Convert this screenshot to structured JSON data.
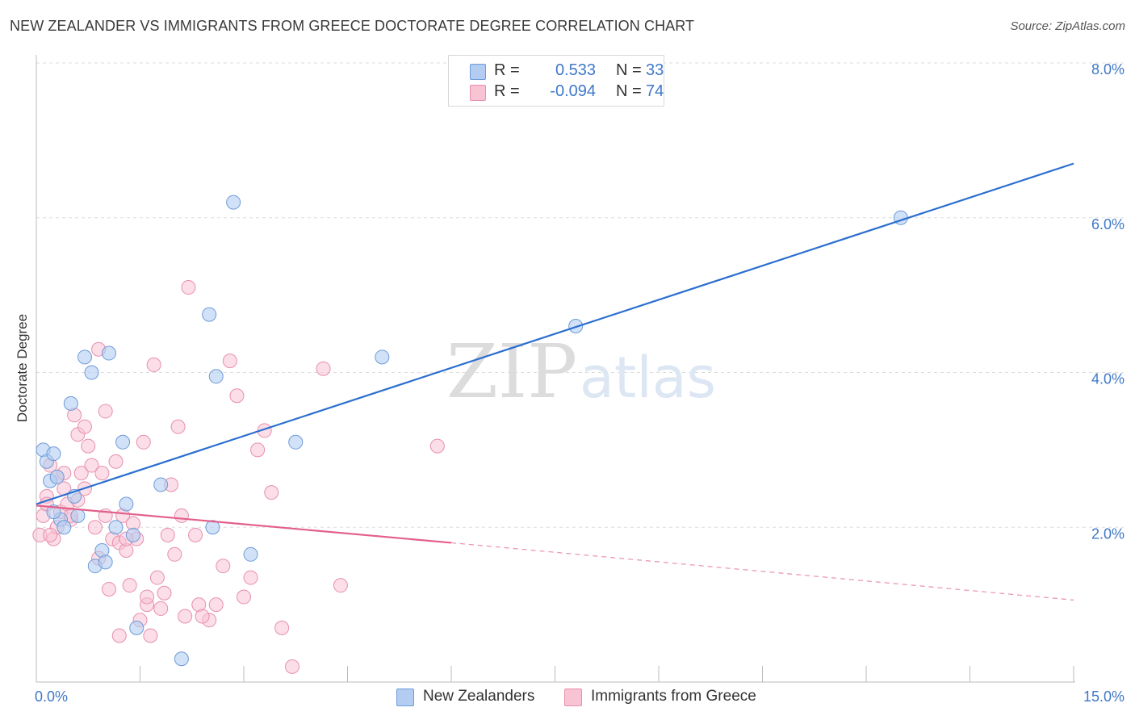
{
  "title": "NEW ZEALANDER VS IMMIGRANTS FROM GREECE DOCTORATE DEGREE CORRELATION CHART",
  "source": "Source: ZipAtlas.com",
  "watermark": {
    "zip": "ZIP",
    "atlas": "atlas"
  },
  "legend": {
    "series1": {
      "r_label": "R =",
      "r_value": "0.533",
      "n_label": "N =",
      "n_value": "33"
    },
    "series2": {
      "r_label": "R =",
      "r_value": "-0.094",
      "n_label": "N =",
      "n_value": "74"
    }
  },
  "colors": {
    "blue_fill": "#b3cdf2",
    "blue_stroke": "#6e9bd8",
    "blue_line": "#2b6fd0",
    "pink_fill": "#f8c3d3",
    "pink_stroke": "#e890ad",
    "pink_line": "#e2608a",
    "tick_label": "#3f78c8",
    "grid": "#dddddd",
    "axis": "#bbbbbb"
  },
  "chart_data": {
    "type": "scatter",
    "title": "NEW ZEALANDER VS IMMIGRANTS FROM GREECE DOCTORATE DEGREE CORRELATION CHART",
    "ylabel": "Doctorate Degree",
    "xlabel": "",
    "xlim": [
      0,
      15
    ],
    "ylim": [
      0,
      8
    ],
    "x_tick_labels": [
      "0.0%",
      "15.0%"
    ],
    "y_ticks": [
      2,
      4,
      6,
      8
    ],
    "y_tick_labels": [
      "2.0%",
      "4.0%",
      "6.0%",
      "8.0%"
    ],
    "grid": true,
    "series": [
      {
        "name": "New Zealanders",
        "color": "blue",
        "points": [
          [
            0.1,
            3.0
          ],
          [
            0.15,
            2.85
          ],
          [
            0.2,
            2.6
          ],
          [
            0.25,
            2.95
          ],
          [
            0.3,
            2.65
          ],
          [
            0.35,
            2.1
          ],
          [
            0.4,
            2.0
          ],
          [
            0.5,
            3.6
          ],
          [
            0.55,
            2.4
          ],
          [
            0.6,
            2.15
          ],
          [
            0.7,
            4.2
          ],
          [
            0.8,
            4.0
          ],
          [
            0.85,
            1.5
          ],
          [
            0.95,
            1.7
          ],
          [
            1.0,
            1.55
          ],
          [
            1.05,
            4.25
          ],
          [
            1.15,
            2.0
          ],
          [
            1.25,
            3.1
          ],
          [
            1.3,
            2.3
          ],
          [
            1.4,
            1.9
          ],
          [
            1.45,
            0.7
          ],
          [
            1.8,
            2.55
          ],
          [
            2.1,
            0.3
          ],
          [
            2.5,
            4.75
          ],
          [
            2.55,
            2.0
          ],
          [
            2.6,
            3.95
          ],
          [
            2.85,
            6.2
          ],
          [
            3.1,
            1.65
          ],
          [
            3.75,
            3.1
          ],
          [
            5.0,
            4.2
          ],
          [
            7.8,
            4.6
          ],
          [
            12.5,
            6.0
          ],
          [
            0.25,
            2.2
          ]
        ],
        "trendline": {
          "x": [
            0,
            15
          ],
          "y": [
            2.3,
            6.7
          ],
          "style": "solid"
        }
      },
      {
        "name": "Immigrants from Greece",
        "color": "pink",
        "points": [
          [
            0.05,
            1.9
          ],
          [
            0.1,
            2.15
          ],
          [
            0.15,
            2.4
          ],
          [
            0.2,
            2.8
          ],
          [
            0.25,
            1.85
          ],
          [
            0.3,
            2.0
          ],
          [
            0.35,
            2.2
          ],
          [
            0.4,
            2.5
          ],
          [
            0.45,
            2.3
          ],
          [
            0.5,
            2.1
          ],
          [
            0.55,
            3.45
          ],
          [
            0.6,
            3.2
          ],
          [
            0.65,
            2.7
          ],
          [
            0.7,
            3.3
          ],
          [
            0.75,
            3.05
          ],
          [
            0.8,
            2.8
          ],
          [
            0.85,
            2.0
          ],
          [
            0.9,
            4.3
          ],
          [
            0.95,
            2.7
          ],
          [
            1.0,
            3.5
          ],
          [
            1.05,
            1.2
          ],
          [
            1.1,
            1.85
          ],
          [
            1.15,
            2.85
          ],
          [
            1.2,
            1.8
          ],
          [
            1.25,
            2.15
          ],
          [
            1.3,
            1.7
          ],
          [
            1.35,
            1.25
          ],
          [
            1.4,
            2.05
          ],
          [
            1.45,
            1.85
          ],
          [
            1.5,
            0.8
          ],
          [
            1.55,
            3.1
          ],
          [
            1.6,
            1.0
          ],
          [
            1.65,
            0.6
          ],
          [
            1.7,
            4.1
          ],
          [
            1.75,
            1.35
          ],
          [
            1.8,
            0.95
          ],
          [
            1.85,
            1.15
          ],
          [
            1.9,
            1.9
          ],
          [
            1.95,
            2.55
          ],
          [
            2.0,
            1.65
          ],
          [
            2.05,
            3.3
          ],
          [
            2.1,
            2.15
          ],
          [
            2.15,
            0.85
          ],
          [
            2.2,
            5.1
          ],
          [
            2.3,
            1.9
          ],
          [
            2.35,
            1.0
          ],
          [
            2.5,
            0.8
          ],
          [
            2.6,
            1.0
          ],
          [
            2.7,
            1.5
          ],
          [
            2.8,
            4.15
          ],
          [
            2.9,
            3.7
          ],
          [
            3.0,
            1.1
          ],
          [
            3.1,
            1.35
          ],
          [
            3.2,
            3.0
          ],
          [
            3.3,
            3.25
          ],
          [
            3.4,
            2.45
          ],
          [
            3.55,
            0.7
          ],
          [
            3.7,
            0.2
          ],
          [
            4.15,
            4.05
          ],
          [
            4.4,
            1.25
          ],
          [
            5.8,
            3.05
          ],
          [
            0.5,
            2.15
          ],
          [
            0.3,
            2.65
          ],
          [
            0.6,
            2.35
          ],
          [
            0.2,
            1.9
          ],
          [
            1.0,
            2.15
          ],
          [
            1.3,
            1.85
          ],
          [
            0.7,
            2.5
          ],
          [
            0.9,
            1.6
          ],
          [
            1.6,
            1.1
          ],
          [
            2.4,
            0.85
          ],
          [
            1.2,
            0.6
          ],
          [
            0.4,
            2.7
          ],
          [
            0.15,
            2.3
          ]
        ],
        "trendline": {
          "x": [
            0,
            6
          ],
          "y": [
            2.28,
            1.8
          ],
          "style": "solid",
          "extended_to": [
            15,
            1.06
          ],
          "extended_style": "dashed"
        }
      }
    ],
    "legend_labels": [
      "New Zealanders",
      "Immigrants from Greece"
    ]
  }
}
